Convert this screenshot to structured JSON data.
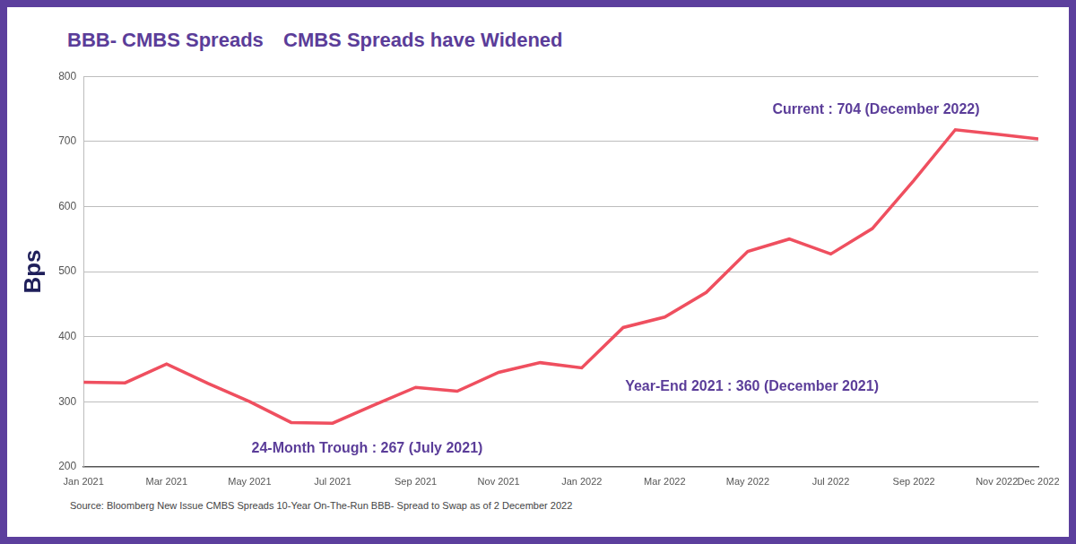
{
  "chart_data": {
    "type": "line",
    "title": "BBB- CMBS Spreads",
    "subtitle": "CMBS Spreads have Widened",
    "y_label": "Bps",
    "source": "Source: Bloomberg New Issue CMBS Spreads 10-Year On-The-Run BBB- Spread to Swap as of 2 December 2022",
    "annotations": [
      "Current : 704 (December 2022)",
      "Year-End 2021 : 360 (December 2021)",
      "24-Month Trough : 267 (July 2021)"
    ],
    "categories": [
      "Jan 2021",
      null,
      "Mar 2021",
      null,
      "May 2021",
      null,
      "Jul 2021",
      null,
      "Sep 2021",
      null,
      "Nov 2021",
      null,
      "Jan 2022",
      null,
      "Mar 2022",
      null,
      "May 2022",
      null,
      "Jul 2022",
      null,
      "Sep 2022",
      null,
      "Nov 2022",
      "Dec 2022"
    ],
    "values": [
      330,
      329,
      358,
      328,
      300,
      268,
      267,
      295,
      322,
      316,
      345,
      360,
      352,
      414,
      430,
      468,
      531,
      550,
      527,
      566,
      640,
      718,
      711,
      704
    ],
    "color": "#ef4f5f",
    "ylim": [
      200,
      800
    ],
    "yticks": [
      200,
      300,
      400,
      500,
      600,
      700,
      800
    ],
    "grid": true
  }
}
